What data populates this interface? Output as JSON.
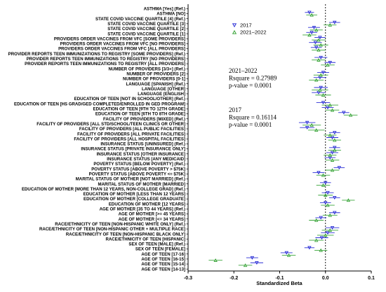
{
  "chart_data": {
    "type": "scatter",
    "xlabel": "Standardized Beta",
    "xlim": [
      -0.3,
      0.1
    ],
    "xticks": [
      "-0.3",
      "-0.2",
      "-0.1",
      "0.0",
      "0.1"
    ],
    "categories": [
      "ASTHMA [Yes] (Ref.)",
      "ASTHMA [NO]",
      "STATE COVID VACCINE QUARTILE [4] (Ref.)",
      "STATE COVID VACCINE QUARTILE [3]",
      "STATE COVID VACCINE QUARTILE [2]",
      "STATE COVID VACCINE QUARTILE [1]",
      "PROVIDERS ORDER VACCINES FROM VFC [SOME PROVIDERS]",
      "PROVIDERS ORDER VACCINES FROM VFC [NO PROVIDERS]",
      "PROVIDERS ORDER VACCINES FROM VFC [ALL PROVIDERS]",
      "PROVIDER REPORTS TEEN IMMUNIZATIONS TO REGISTRY [SOME PROVIDERS] (Ref.)",
      "PROVIDER REPORTS TEEN IMMUNIZATIONS TO REGISTRY [NO PROVIDERS]",
      "PROVIDER REPORTS TEEN IMMUNIZATIONS TO REGISTRY [ALL PROVIDERS]",
      "NUMBER OF PROVIDERS [3/3+] (Ref.)",
      "NUMBER OF PROVIDERS [2]",
      "NUMBER OF PROVIDERS [0-1]",
      "LANGUAGE [SPANISH] (Ref.)",
      "LANGUAGE [OTHER]",
      "LANGUAGE [ENGLISH]",
      "EDUCATION OF TEEN [NOT IN SCHOOL/OTHER] (Ref.)",
      "EDUCATION OF TEEN [HS GRAD/GED COMPLETED/ENROLLED IN GED PROGRAM]",
      "EDUCATION OF TEEN [9TH TO 12TH GRADE]",
      "EDUCATION OF TEEN [6TH TO 8TH GRADE]",
      "FACILITY OF PROVIDERS [MIXED] (Ref.)",
      "FACILITY OF PROVIDERS [ALL STD/SCHOOL/TEEN CLINICS OR OTHER]",
      "FACILITY OF PROVIDERS [ALL PUBLIC FACILITIES]",
      "FACILITY OF PROVIDERS [ALL PRIVATE FACILITIES]",
      "FACILITY OF PROVIDERS [ALL HOSPITAL FACILITIES]",
      "INSURANCE STATUS [UNINSURED] (Ref.)",
      "INSURANCE STATUS [PRIVATE INSURANCE ONLY]",
      "INSURANCE STATUS [OTHER INSURANCE]",
      "INSURANCE STATUS [ANY MEDICAID]",
      "POVERTY STATUS [BELOW POVERTY] (Ref.)",
      "POVERTY STATUS [ABOVE POVERTY > $75K]",
      "POVERTY STATUS [ABOVE POVERTY <= $75K]",
      "MARITAL STATUS OF MOTHER [NOT MARRIED] (Ref.)",
      "MARITAL STATUS OF MOTHER [MARRIED]",
      "EDUCATION OF MOTHER [MORE THAN 12 YEARS, NON-COLLEGE GRAD] (Ref.)",
      "EDUCATION OF MOTHER [LESS THAN 12 YEARS]",
      "EDUCATION OF MOTHER [COLLEGE GRADUATE]",
      "EDUCATION OF MOTHER [12 YEARS]",
      "AGE OF MOTHER [35 TO 44 YEARS] (Ref.)",
      "AGE OF MOTHER [>= 45 YEARS]",
      "AGE OF MOTHER [<= 34 YEARS]",
      "RACE/ETHNICITY OF TEEN [NON-HISPANIC WHITE ONLY] (Ref.)",
      "RACE/ETHNICITY OF TEEN [NON-HISPANIC OTHER + MULTIPLE RACE]",
      "RACE/ETHNICITY OF TEEN [NON-HISPANIC BLACK ONLY]",
      "RACE/ETHNICITY OF TEEN [HISPANIC]",
      "SEX OF TEEN [MALE] (Ref.)",
      "SEX OF TEEN [FEMALE]",
      "AGE OF TEEN [17-16]",
      "AGE OF TEEN [16-15]",
      "AGE OF TEEN [15-14]",
      "AGE OF TEEN [14-13]"
    ],
    "series": [
      {
        "name": "2017",
        "marker": "triangle-down",
        "color": "#2b2fd6",
        "points": [
          {
            "i": 1,
            "x": -0.035,
            "lo": -0.045,
            "hi": -0.025
          },
          {
            "i": 3,
            "x": 0.02,
            "lo": 0.008,
            "hi": 0.032
          },
          {
            "i": 4,
            "x": -0.025,
            "lo": -0.038,
            "hi": -0.012
          },
          {
            "i": 5,
            "x": -0.03,
            "lo": -0.042,
            "hi": -0.018
          },
          {
            "i": 6,
            "x": -0.012,
            "lo": -0.024,
            "hi": 0.0
          },
          {
            "i": 7,
            "x": -0.022,
            "lo": -0.036,
            "hi": -0.008
          },
          {
            "i": 8,
            "x": -0.02,
            "lo": -0.032,
            "hi": -0.008
          },
          {
            "i": 10,
            "x": -0.01,
            "lo": -0.024,
            "hi": 0.004
          },
          {
            "i": 11,
            "x": 0.01,
            "lo": -0.002,
            "hi": 0.022
          },
          {
            "i": 13,
            "x": -0.005,
            "lo": -0.018,
            "hi": 0.008
          },
          {
            "i": 14,
            "x": -0.012,
            "lo": -0.026,
            "hi": 0.002
          },
          {
            "i": 16,
            "x": -0.01,
            "lo": -0.025,
            "hi": 0.005
          },
          {
            "i": 17,
            "x": -0.015,
            "lo": -0.03,
            "hi": 0.0
          },
          {
            "i": 19,
            "x": -0.005,
            "lo": -0.02,
            "hi": 0.01
          },
          {
            "i": 20,
            "x": 0.005,
            "lo": -0.008,
            "hi": 0.018
          },
          {
            "i": 21,
            "x": 0.04,
            "lo": 0.028,
            "hi": 0.052
          },
          {
            "i": 23,
            "x": -0.04,
            "lo": -0.058,
            "hi": -0.022
          },
          {
            "i": 24,
            "x": -0.04,
            "lo": -0.056,
            "hi": -0.024
          },
          {
            "i": 25,
            "x": 0.02,
            "lo": 0.008,
            "hi": 0.032
          },
          {
            "i": 26,
            "x": 0.015,
            "lo": 0.002,
            "hi": 0.028
          },
          {
            "i": 28,
            "x": 0.02,
            "lo": 0.008,
            "hi": 0.032
          },
          {
            "i": 29,
            "x": 0.015,
            "lo": 0.002,
            "hi": 0.028
          },
          {
            "i": 30,
            "x": 0.01,
            "lo": -0.002,
            "hi": 0.022
          },
          {
            "i": 32,
            "x": 0.03,
            "lo": 0.018,
            "hi": 0.042
          },
          {
            "i": 33,
            "x": -0.015,
            "lo": -0.028,
            "hi": -0.002
          },
          {
            "i": 35,
            "x": 0.0,
            "lo": -0.012,
            "hi": 0.012
          },
          {
            "i": 37,
            "x": 0.005,
            "lo": -0.008,
            "hi": 0.018
          },
          {
            "i": 38,
            "x": 0.02,
            "lo": 0.008,
            "hi": 0.032
          },
          {
            "i": 39,
            "x": 0.0,
            "lo": -0.012,
            "hi": 0.012
          },
          {
            "i": 41,
            "x": 0.02,
            "lo": 0.008,
            "hi": 0.032
          },
          {
            "i": 42,
            "x": -0.01,
            "lo": -0.022,
            "hi": 0.002
          },
          {
            "i": 44,
            "x": 0.015,
            "lo": 0.0,
            "hi": 0.03
          },
          {
            "i": 45,
            "x": 0.005,
            "lo": -0.01,
            "hi": 0.02
          },
          {
            "i": 46,
            "x": -0.008,
            "lo": -0.022,
            "hi": 0.006
          },
          {
            "i": 48,
            "x": -0.035,
            "lo": -0.046,
            "hi": -0.024
          },
          {
            "i": 49,
            "x": -0.085,
            "lo": -0.098,
            "hi": -0.072
          },
          {
            "i": 50,
            "x": -0.16,
            "lo": -0.173,
            "hi": -0.147
          },
          {
            "i": 51,
            "x": -0.15,
            "lo": -0.164,
            "hi": -0.136
          }
        ]
      },
      {
        "name": "2021–2022",
        "marker": "triangle-up",
        "color": "#3aa53a",
        "points": [
          {
            "i": 1,
            "x": -0.03,
            "lo": -0.042,
            "hi": -0.018
          },
          {
            "i": 3,
            "x": 0.01,
            "lo": -0.004,
            "hi": 0.024
          },
          {
            "i": 4,
            "x": -0.02,
            "lo": -0.034,
            "hi": -0.006
          },
          {
            "i": 5,
            "x": -0.035,
            "lo": -0.05,
            "hi": -0.02
          },
          {
            "i": 6,
            "x": -0.015,
            "lo": -0.03,
            "hi": 0.0
          },
          {
            "i": 7,
            "x": -0.01,
            "lo": -0.026,
            "hi": 0.006
          },
          {
            "i": 8,
            "x": -0.015,
            "lo": -0.03,
            "hi": 0.0
          },
          {
            "i": 10,
            "x": -0.015,
            "lo": -0.03,
            "hi": 0.0
          },
          {
            "i": 11,
            "x": 0.005,
            "lo": -0.01,
            "hi": 0.02
          },
          {
            "i": 13,
            "x": -0.01,
            "lo": -0.026,
            "hi": 0.006
          },
          {
            "i": 14,
            "x": -0.02,
            "lo": -0.036,
            "hi": -0.004
          },
          {
            "i": 16,
            "x": -0.012,
            "lo": -0.03,
            "hi": 0.006
          },
          {
            "i": 17,
            "x": -0.005,
            "lo": -0.022,
            "hi": 0.012
          },
          {
            "i": 19,
            "x": 0.01,
            "lo": -0.008,
            "hi": 0.028
          },
          {
            "i": 20,
            "x": 0.015,
            "lo": 0.0,
            "hi": 0.03
          },
          {
            "i": 21,
            "x": 0.055,
            "lo": 0.04,
            "hi": 0.07
          },
          {
            "i": 23,
            "x": -0.03,
            "lo": -0.05,
            "hi": -0.01
          },
          {
            "i": 24,
            "x": -0.02,
            "lo": -0.038,
            "hi": -0.002
          },
          {
            "i": 25,
            "x": 0.01,
            "lo": -0.004,
            "hi": 0.024
          },
          {
            "i": 26,
            "x": 0.02,
            "lo": 0.006,
            "hi": 0.034
          },
          {
            "i": 28,
            "x": 0.02,
            "lo": 0.006,
            "hi": 0.034
          },
          {
            "i": 29,
            "x": 0.01,
            "lo": -0.004,
            "hi": 0.024
          },
          {
            "i": 30,
            "x": 0.015,
            "lo": 0.0,
            "hi": 0.03
          },
          {
            "i": 32,
            "x": 0.015,
            "lo": 0.0,
            "hi": 0.03
          },
          {
            "i": 33,
            "x": -0.005,
            "lo": -0.02,
            "hi": 0.01
          },
          {
            "i": 35,
            "x": -0.005,
            "lo": -0.02,
            "hi": 0.01
          },
          {
            "i": 37,
            "x": 0.0,
            "lo": -0.016,
            "hi": 0.016
          },
          {
            "i": 38,
            "x": 0.05,
            "lo": 0.036,
            "hi": 0.064
          },
          {
            "i": 39,
            "x": 0.005,
            "lo": -0.01,
            "hi": 0.02
          },
          {
            "i": 41,
            "x": 0.01,
            "lo": -0.006,
            "hi": 0.026
          },
          {
            "i": 42,
            "x": -0.02,
            "lo": -0.036,
            "hi": -0.004
          },
          {
            "i": 44,
            "x": 0.01,
            "lo": -0.008,
            "hi": 0.028
          },
          {
            "i": 45,
            "x": 0.0,
            "lo": -0.018,
            "hi": 0.018
          },
          {
            "i": 46,
            "x": -0.02,
            "lo": -0.036,
            "hi": -0.004
          },
          {
            "i": 48,
            "x": -0.01,
            "lo": -0.024,
            "hi": 0.004
          },
          {
            "i": 49,
            "x": -0.08,
            "lo": -0.095,
            "hi": -0.065
          },
          {
            "i": 50,
            "x": -0.24,
            "lo": -0.255,
            "hi": -0.225
          },
          {
            "i": 51,
            "x": -0.175,
            "lo": -0.19,
            "hi": -0.16
          }
        ]
      }
    ],
    "legend": {
      "placement": "top-center-right",
      "entries": [
        "2017",
        "2021–2022"
      ]
    },
    "annotations": [
      {
        "lines": [
          "2021–2022",
          "Rsquare = 0.27989",
          "p-value = 0.0001"
        ]
      },
      {
        "lines": [
          "2017",
          "Rsquare = 0.16114",
          "p-value = 0.0001"
        ]
      }
    ],
    "reference_line_x": 0.0
  }
}
